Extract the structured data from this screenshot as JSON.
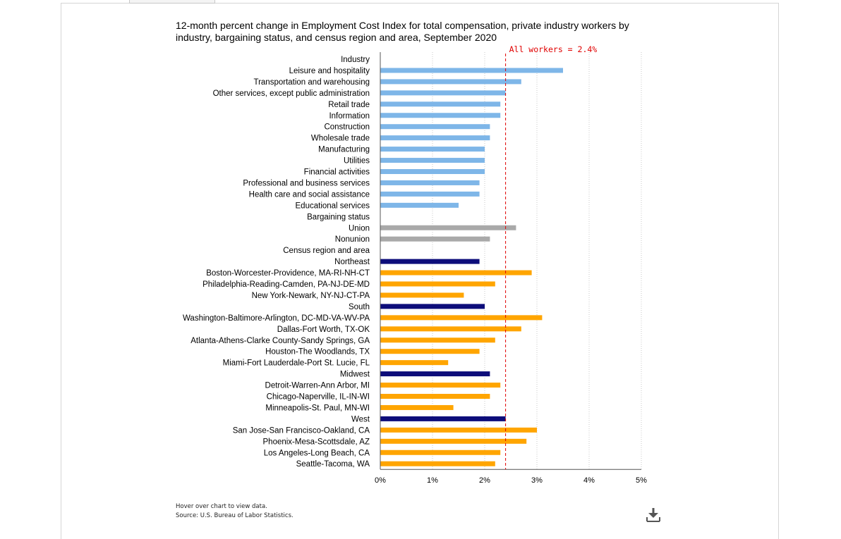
{
  "chart_data": {
    "type": "bar",
    "orientation": "horizontal",
    "title": "12-month percent change in Employment Cost Index for total compensation, private industry workers by industry, bargaining status, and census region and area, September 2020",
    "xlim": [
      0,
      5
    ],
    "x_ticks": [
      "0%",
      "1%",
      "2%",
      "3%",
      "4%",
      "5%"
    ],
    "grid": "vertical dotted",
    "reference_line": {
      "label": "All workers = 2.4%",
      "value": 2.4,
      "color": "#e00000"
    },
    "colors": {
      "industry": "#7eb6e8",
      "bargaining": "#a9a9a9",
      "region": "#0d0d7a",
      "area": "#ffa500"
    },
    "rows": [
      {
        "label": "Industry",
        "header": true
      },
      {
        "label": "Leisure and hospitality",
        "value": 3.5,
        "group": "industry"
      },
      {
        "label": "Transportation and warehousing",
        "value": 2.7,
        "group": "industry"
      },
      {
        "label": "Other services, except public administration",
        "value": 2.4,
        "group": "industry"
      },
      {
        "label": "Retail trade",
        "value": 2.3,
        "group": "industry"
      },
      {
        "label": "Information",
        "value": 2.3,
        "group": "industry"
      },
      {
        "label": "Construction",
        "value": 2.1,
        "group": "industry"
      },
      {
        "label": "Wholesale trade",
        "value": 2.1,
        "group": "industry"
      },
      {
        "label": "Manufacturing",
        "value": 2.0,
        "group": "industry"
      },
      {
        "label": "Utilities",
        "value": 2.0,
        "group": "industry"
      },
      {
        "label": "Financial activities",
        "value": 2.0,
        "group": "industry"
      },
      {
        "label": "Professional and business services",
        "value": 1.9,
        "group": "industry"
      },
      {
        "label": "Health care and social assistance",
        "value": 1.9,
        "group": "industry"
      },
      {
        "label": "Educational services",
        "value": 1.5,
        "group": "industry"
      },
      {
        "label": "Bargaining status",
        "header": true
      },
      {
        "label": "Union",
        "value": 2.6,
        "group": "bargaining"
      },
      {
        "label": "Nonunion",
        "value": 2.1,
        "group": "bargaining"
      },
      {
        "label": "Census region and area",
        "header": true
      },
      {
        "label": "Northeast",
        "value": 1.9,
        "group": "region"
      },
      {
        "label": "Boston-Worcester-Providence, MA-RI-NH-CT",
        "value": 2.9,
        "group": "area"
      },
      {
        "label": "Philadelphia-Reading-Camden, PA-NJ-DE-MD",
        "value": 2.2,
        "group": "area"
      },
      {
        "label": "New York-Newark, NY-NJ-CT-PA",
        "value": 1.6,
        "group": "area"
      },
      {
        "label": "South",
        "value": 2.0,
        "group": "region"
      },
      {
        "label": "Washington-Baltimore-Arlington, DC-MD-VA-WV-PA",
        "value": 3.1,
        "group": "area"
      },
      {
        "label": "Dallas-Fort Worth, TX-OK",
        "value": 2.7,
        "group": "area"
      },
      {
        "label": "Atlanta-Athens-Clarke County-Sandy Springs, GA",
        "value": 2.2,
        "group": "area"
      },
      {
        "label": "Houston-The Woodlands, TX",
        "value": 1.9,
        "group": "area"
      },
      {
        "label": "Miami-Fort Lauderdale-Port St. Lucie, FL",
        "value": 1.3,
        "group": "area"
      },
      {
        "label": "Midwest",
        "value": 2.1,
        "group": "region"
      },
      {
        "label": "Detroit-Warren-Ann Arbor, MI",
        "value": 2.3,
        "group": "area"
      },
      {
        "label": "Chicago-Naperville, IL-IN-WI",
        "value": 2.1,
        "group": "area"
      },
      {
        "label": "Minneapolis-St. Paul, MN-WI",
        "value": 1.4,
        "group": "area"
      },
      {
        "label": "West",
        "value": 2.4,
        "group": "region"
      },
      {
        "label": "San Jose-San Francisco-Oakland, CA",
        "value": 3.0,
        "group": "area"
      },
      {
        "label": "Phoenix-Mesa-Scottsdale, AZ",
        "value": 2.8,
        "group": "area"
      },
      {
        "label": "Los Angeles-Long Beach, CA",
        "value": 2.3,
        "group": "area"
      },
      {
        "label": "Seattle-Tacoma, WA",
        "value": 2.2,
        "group": "area"
      }
    ]
  },
  "footer": {
    "hover_note": "Hover over chart to view data.",
    "source": "Source: U.S. Bureau of Labor Statistics."
  },
  "icons": {
    "download": "download-icon"
  }
}
